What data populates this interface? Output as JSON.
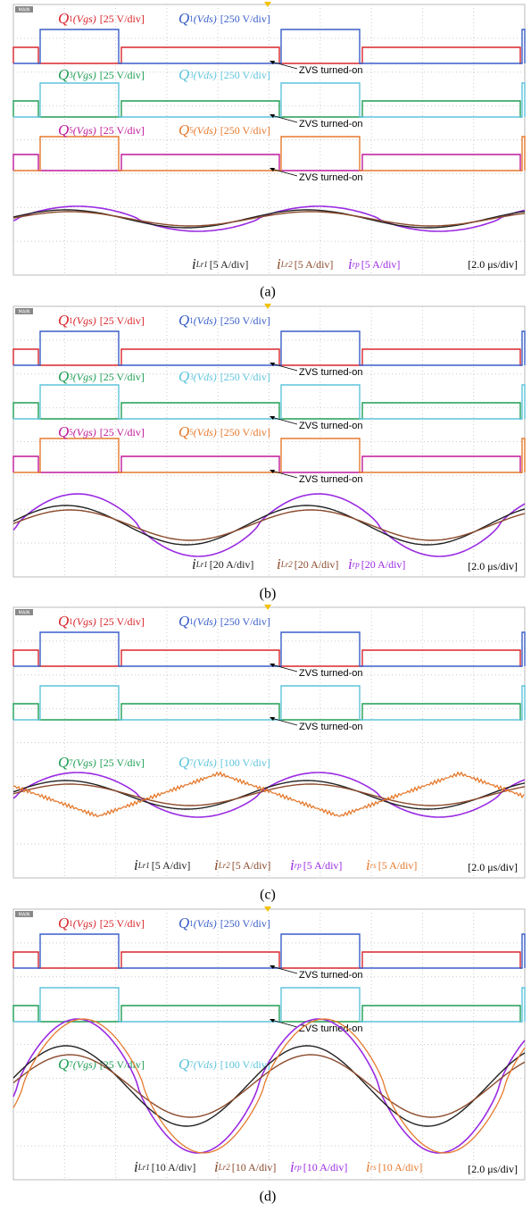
{
  "panels": [
    {
      "caption": "(a)",
      "badge": "MAIN",
      "timebase": "[2.0 μs/div]",
      "traces": [
        {
          "symbol": "Q",
          "index": "1",
          "arg": "(Vgs)",
          "scale": "[25 V/div]",
          "color": "#d9262b"
        },
        {
          "symbol": "Q",
          "index": "1",
          "arg": "(Vds)",
          "scale": "[250 V/div]",
          "color": "#3a5fc8"
        },
        {
          "symbol": "Q",
          "index": "3",
          "arg": "(Vgs)",
          "scale": "[25 V/div]",
          "color": "#1e9e55"
        },
        {
          "symbol": "Q",
          "index": "3",
          "arg": "(Vds)",
          "scale": "[250 V/div]",
          "color": "#5ec4dc"
        },
        {
          "symbol": "Q",
          "index": "5",
          "arg": "(Vgs)",
          "scale": "[25 V/div]",
          "color": "#c0199a"
        },
        {
          "symbol": "Q",
          "index": "5",
          "arg": "(Vds)",
          "scale": "[250 V/div]",
          "color": "#e57a2e"
        }
      ],
      "annotations": [
        "ZVS turned-on",
        "ZVS turned-on",
        "ZVS turned-on"
      ],
      "currents": [
        {
          "symbol": "i",
          "sub": "Lr1",
          "scale": "[5 A/div]",
          "color": "#222222"
        },
        {
          "symbol": "i",
          "sub": "Lr2",
          "scale": "[5 A/div]",
          "color": "#8b4a2b"
        },
        {
          "symbol": "i",
          "sub": "rp",
          "scale": "[5 A/div]",
          "color": "#9a2be2"
        }
      ]
    },
    {
      "caption": "(b)",
      "badge": "MAIN",
      "timebase": "[2.0 μs/div]",
      "traces": [
        {
          "symbol": "Q",
          "index": "1",
          "arg": "(Vgs)",
          "scale": "[25 V/div]",
          "color": "#d9262b"
        },
        {
          "symbol": "Q",
          "index": "1",
          "arg": "(Vds)",
          "scale": "[250 V/div]",
          "color": "#3a5fc8"
        },
        {
          "symbol": "Q",
          "index": "3",
          "arg": "(Vgs)",
          "scale": "[25 V/div]",
          "color": "#1e9e55"
        },
        {
          "symbol": "Q",
          "index": "3",
          "arg": "(Vds)",
          "scale": "[250 V/div]",
          "color": "#5ec4dc"
        },
        {
          "symbol": "Q",
          "index": "5",
          "arg": "(Vgs)",
          "scale": "[25 V/div]",
          "color": "#c0199a"
        },
        {
          "symbol": "Q",
          "index": "5",
          "arg": "(Vds)",
          "scale": "[250 V/div]",
          "color": "#e57a2e"
        }
      ],
      "annotations": [
        "ZVS turned-on",
        "ZVS turned-on",
        "ZVS turned-on"
      ],
      "currents": [
        {
          "symbol": "i",
          "sub": "Lr1",
          "scale": "[20 A/div]",
          "color": "#222222"
        },
        {
          "symbol": "i",
          "sub": "Lr2",
          "scale": "[20 A/div]",
          "color": "#8b4a2b"
        },
        {
          "symbol": "i",
          "sub": "rp",
          "scale": "[20 A/div]",
          "color": "#9a2be2"
        }
      ]
    },
    {
      "caption": "(c)",
      "badge": "MAIN",
      "timebase": "[2.0 μs/div]",
      "traces": [
        {
          "symbol": "Q",
          "index": "1",
          "arg": "(Vgs)",
          "scale": "[25 V/div]",
          "color": "#d9262b"
        },
        {
          "symbol": "Q",
          "index": "1",
          "arg": "(Vds)",
          "scale": "[250 V/div]",
          "color": "#3a5fc8"
        },
        {
          "symbol": "Q",
          "index": "7",
          "arg": "(Vgs)",
          "scale": "[25 V/div]",
          "color": "#1e9e55"
        },
        {
          "symbol": "Q",
          "index": "7",
          "arg": "(Vds)",
          "scale": "[100 V/div]",
          "color": "#5ec4dc"
        }
      ],
      "annotations": [
        "ZVS turned-on",
        "ZVS turned-on"
      ],
      "currents": [
        {
          "symbol": "i",
          "sub": "Lr1",
          "scale": "[5 A/div]",
          "color": "#222222"
        },
        {
          "symbol": "i",
          "sub": "Lr2",
          "scale": "[5 A/div]",
          "color": "#8b4a2b"
        },
        {
          "symbol": "i",
          "sub": "rp",
          "scale": "[5 A/div]",
          "color": "#9a2be2"
        },
        {
          "symbol": "i",
          "sub": "rs",
          "scale": "[5 A/div]",
          "color": "#e57a2e"
        }
      ]
    },
    {
      "caption": "(d)",
      "badge": "MAIN",
      "timebase": "[2.0 μs/div]",
      "traces": [
        {
          "symbol": "Q",
          "index": "1",
          "arg": "(Vgs)",
          "scale": "[25 V/div]",
          "color": "#d9262b"
        },
        {
          "symbol": "Q",
          "index": "1",
          "arg": "(Vds)",
          "scale": "[250 V/div]",
          "color": "#3a5fc8"
        },
        {
          "symbol": "Q",
          "index": "7",
          "arg": "(Vgs)",
          "scale": "[25 V/div]",
          "color": "#1e9e55"
        },
        {
          "symbol": "Q",
          "index": "7",
          "arg": "(Vds)",
          "scale": "[100 V/div]",
          "color": "#5ec4dc"
        }
      ],
      "annotations": [
        "ZVS turned-on",
        "ZVS turned-on"
      ],
      "currents": [
        {
          "symbol": "i",
          "sub": "Lr1",
          "scale": "[10 A/div]",
          "color": "#222222"
        },
        {
          "symbol": "i",
          "sub": "Lr2",
          "scale": "[10 A/div]",
          "color": "#8b4a2b"
        },
        {
          "symbol": "i",
          "sub": "rp",
          "scale": "[10 A/div]",
          "color": "#9a2be2"
        },
        {
          "symbol": "i",
          "sub": "rs",
          "scale": "[10 A/div]",
          "color": "#e57a2e"
        }
      ]
    }
  ]
}
